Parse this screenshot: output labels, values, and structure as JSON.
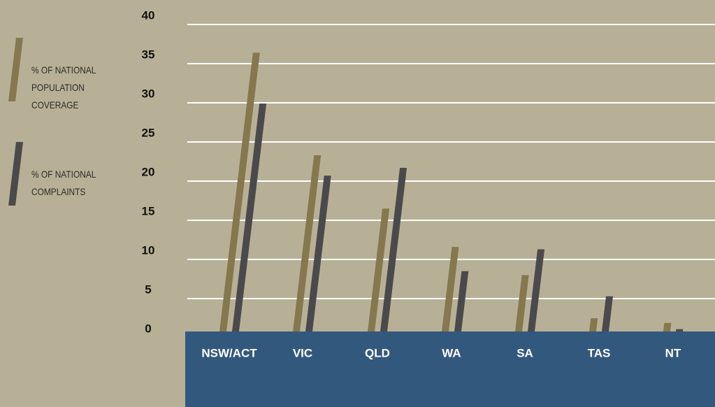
{
  "chart_data": {
    "type": "bar",
    "categories": [
      "NSW/ACT",
      "VIC",
      "QLD",
      "WA",
      "SA",
      "TAS",
      "NT"
    ],
    "series": [
      {
        "name": "% OF NATIONAL POPULATION COVERAGE",
        "color": "#85784f",
        "values": [
          36.4,
          23.3,
          16.5,
          11.6,
          8.0,
          2.5,
          1.9
        ]
      },
      {
        "name": "% OF NATIONAL COMPLAINTS",
        "color": "#4a4a4c",
        "values": [
          29.9,
          20.7,
          21.7,
          8.5,
          11.3,
          5.3,
          1.1
        ]
      }
    ],
    "ylim": [
      0,
      40
    ],
    "yticks": [
      0,
      5,
      10,
      15,
      20,
      25,
      30,
      35,
      40
    ],
    "grid": true
  }
}
